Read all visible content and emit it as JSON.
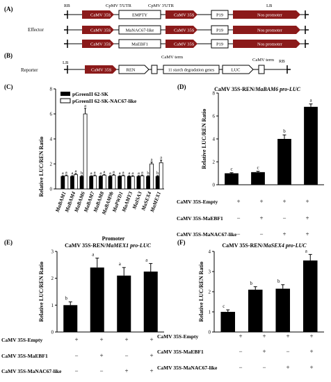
{
  "constructs": {
    "panel_A_label": "(A)",
    "panel_B_label": "(B)",
    "effector_label": "Effector",
    "reporter_label": "Reporter",
    "rb": "RB",
    "lb": "LB",
    "cpmv5": "CpMV 5'UTR",
    "cpmv3": "CpMV 3'UTR",
    "camv35s": "CaMV 35S",
    "empty": "EMPTY",
    "manac": "MaNAC67-like",
    "maebf1": "MaEBF1",
    "p19": "P19",
    "nos": "Nos promoter",
    "camv_term": "CaMV term",
    "ren": "REN",
    "starch_genes": "11 starch degradation genes",
    "luc": "LUC",
    "colors": {
      "arrow": "#8b1a1a",
      "bar_black": "#000000",
      "bar_white": "#ffffff"
    }
  },
  "charts": {
    "C": {
      "panel_label": "(C)",
      "ylabel": "Relative LUC/REN Ratio",
      "xlabel": "Promoter",
      "legend": [
        "pGreenII 62-SK",
        "pGreenII 62-SK-NAC67-like"
      ]
    },
    "D": {
      "panel_label": "(D)",
      "title_main": "CaMV 35S-REN/",
      "title_italic": "MaBAM6 pro-LUC",
      "ylabel": "Relative LUC/REN Ratio",
      "rows": [
        "CaMV 35S-Empty",
        "CaMV 35S-MaEBF1",
        "CaMV 35S-MaNAC67-like"
      ]
    },
    "E": {
      "panel_label": "(E)",
      "title_main": "CaMV 35S-REN/",
      "title_italic": "MaMEX1 pro-LUC",
      "ylabel": "Relative LUC/REN Ratio",
      "rows": [
        "CaMV 35S-Empty",
        "CaMV 35S-MaEBF1",
        "CaMV 35S-MaNAC67-like"
      ]
    },
    "F": {
      "panel_label": "(F)",
      "title_main": "CaMV 35S-REN/",
      "title_italic": "MaSEX4 pro-LUC",
      "ylabel": "Relative LUC/REN Ratio",
      "rows": [
        "CaMV 35S-Empty",
        "CaMV 35S-MaEBF1",
        "CaMV 35S-MaNAC67-like"
      ]
    }
  },
  "chart_data": [
    {
      "type": "bar",
      "panel": "C",
      "categories": [
        "MaBAM1",
        "MaBAM4",
        "MaBAM6",
        "MaBAM7",
        "MaBAM8",
        "MaBAM9b",
        "MaPWD1",
        "MaAMY3",
        "MaISA3",
        "MaSEX4",
        "MaMEX1"
      ],
      "series": [
        {
          "name": "pGreenII 62-SK",
          "values": [
            1,
            1,
            1,
            1,
            1,
            1,
            1,
            1,
            1,
            1,
            1
          ],
          "errors": [
            0.05,
            0.06,
            0.06,
            0.05,
            0.05,
            0.06,
            0.05,
            0.05,
            0.06,
            0.06,
            0.06
          ],
          "letters": [
            "a",
            "a",
            "b",
            "a",
            "a",
            "a",
            "a",
            "a",
            "a",
            "b",
            "b"
          ]
        },
        {
          "name": "pGreenII 62-SK-NAC67-like",
          "values": [
            1.05,
            1.15,
            6.0,
            1.05,
            1.1,
            1.1,
            1.05,
            1.0,
            1.05,
            2.0,
            2.1
          ],
          "errors": [
            0.06,
            0.08,
            0.45,
            0.06,
            0.06,
            0.07,
            0.06,
            0.06,
            0.06,
            0.15,
            0.2
          ],
          "letters": [
            "a",
            "a",
            "a",
            "a",
            "a",
            "a",
            "a",
            "a",
            "a",
            "a",
            "a"
          ]
        }
      ],
      "ylim": [
        0,
        8
      ]
    },
    {
      "type": "bar",
      "panel": "D",
      "values": [
        1.0,
        1.1,
        4.0,
        6.8
      ],
      "errors": [
        0.05,
        0.08,
        0.35,
        0.25
      ],
      "letters": [
        "c",
        "c",
        "b",
        "a"
      ],
      "signs": [
        [
          "+",
          "+",
          "+",
          "+"
        ],
        [
          "−",
          "+",
          "−",
          "+"
        ],
        [
          "−",
          "−",
          "+",
          "+"
        ]
      ],
      "ylim": [
        0,
        8
      ]
    },
    {
      "type": "bar",
      "panel": "E",
      "values": [
        1.0,
        2.4,
        2.1,
        2.25
      ],
      "errors": [
        0.12,
        0.35,
        0.3,
        0.3
      ],
      "letters": [
        "b",
        "a",
        "a",
        "a"
      ],
      "signs": [
        [
          "+",
          "+",
          "+",
          "+"
        ],
        [
          "−",
          "+",
          "−",
          "+"
        ],
        [
          "−",
          "−",
          "+",
          "+"
        ]
      ],
      "ylim": [
        0,
        3
      ]
    },
    {
      "type": "bar",
      "panel": "F",
      "values": [
        1.0,
        2.1,
        2.15,
        3.55
      ],
      "errors": [
        0.1,
        0.15,
        0.2,
        0.3
      ],
      "letters": [
        "c",
        "b",
        "b",
        "a"
      ],
      "signs": [
        [
          "+",
          "+",
          "+",
          "+"
        ],
        [
          "−",
          "+",
          "−",
          "+"
        ],
        [
          "−",
          "−",
          "+",
          "+"
        ]
      ],
      "ylim": [
        0,
        4
      ]
    }
  ]
}
